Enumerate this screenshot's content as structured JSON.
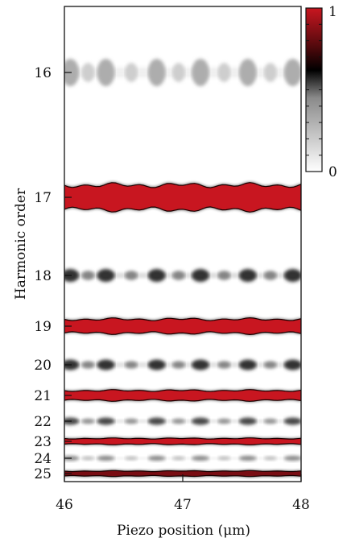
{
  "chart_data": {
    "type": "heatmap",
    "xlabel": "Piezo position  (μm)",
    "ylabel": "Harmonic order",
    "xlim": [
      46,
      48
    ],
    "x_ticks": [
      "46",
      "47",
      "48"
    ],
    "y_ticks": [
      "16",
      "17",
      "18",
      "19",
      "20",
      "21",
      "22",
      "23",
      "24",
      "25"
    ],
    "colorbar": {
      "min": 0,
      "max": 1,
      "min_label": "0",
      "max_label": "1",
      "low_color": "#ffffff",
      "mid_color": "#000000",
      "high_color": "#c81620"
    },
    "harmonics": [
      {
        "order": 16,
        "intensity": 0.2,
        "modulated": true
      },
      {
        "order": 17,
        "intensity": 1.0,
        "modulated": false
      },
      {
        "order": 18,
        "intensity": 0.5,
        "modulated": true
      },
      {
        "order": 19,
        "intensity": 1.0,
        "modulated": false
      },
      {
        "order": 20,
        "intensity": 0.5,
        "modulated": true
      },
      {
        "order": 21,
        "intensity": 1.0,
        "modulated": false
      },
      {
        "order": 22,
        "intensity": 0.45,
        "modulated": true
      },
      {
        "order": 23,
        "intensity": 1.0,
        "modulated": false
      },
      {
        "order": 24,
        "intensity": 0.3,
        "modulated": true
      },
      {
        "order": 25,
        "intensity": 0.85,
        "modulated": false
      }
    ],
    "modulation_peaks_um": [
      46.05,
      46.35,
      46.78,
      47.15,
      47.55,
      47.93
    ]
  }
}
